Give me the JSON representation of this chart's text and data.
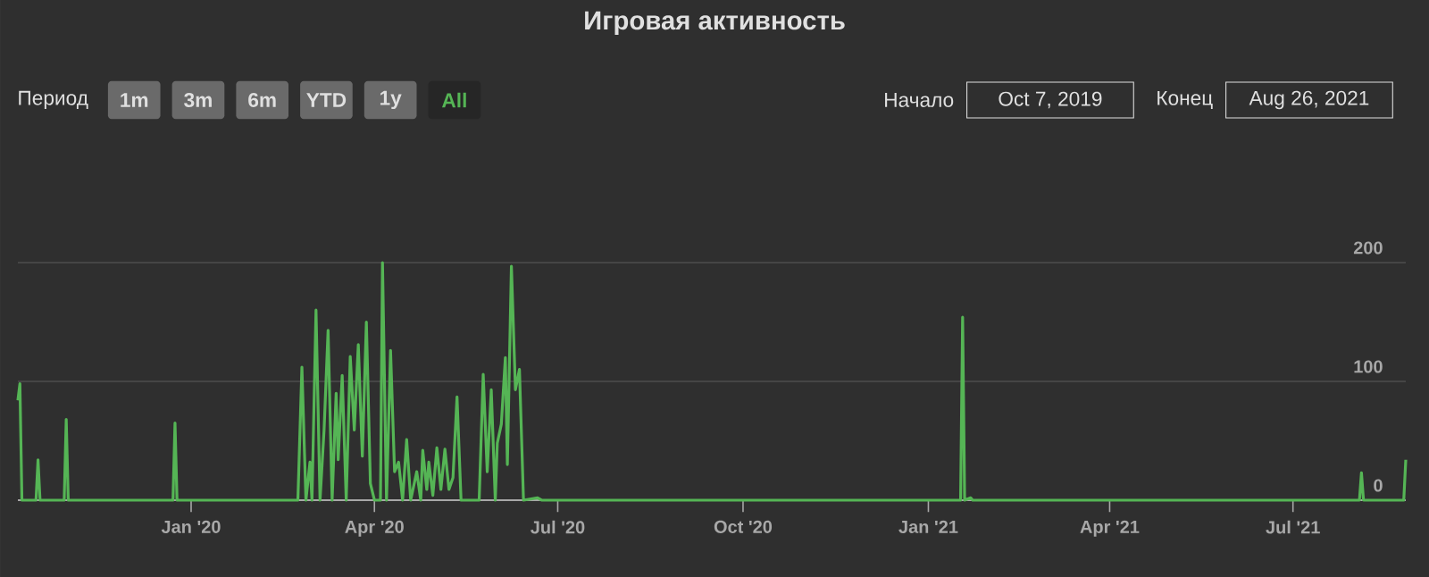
{
  "chart_data": {
    "type": "line",
    "title": "Игровая активность",
    "annotations": [
      "Период",
      "1m",
      "3m",
      "6m",
      "YTD",
      "1y",
      "All",
      "Начало",
      "Oct 7, 2019",
      "Конец",
      "Aug 26, 2021"
    ],
    "x": [
      "2019-10-07",
      "2019-10-08",
      "2019-10-09",
      "2019-10-16",
      "2019-10-17",
      "2019-10-18",
      "2019-10-30",
      "2019-10-31",
      "2019-11-01",
      "2019-12-23",
      "2019-12-24",
      "2019-12-25",
      "2020-02-23",
      "2020-02-25",
      "2020-02-27",
      "2020-02-29",
      "2020-03-01",
      "2020-03-03",
      "2020-03-05",
      "2020-03-07",
      "2020-03-09",
      "2020-03-11",
      "2020-03-13",
      "2020-03-14",
      "2020-03-16",
      "2020-03-18",
      "2020-03-20",
      "2020-03-22",
      "2020-03-24",
      "2020-03-26",
      "2020-03-28",
      "2020-03-30",
      "2020-04-01",
      "2020-04-04",
      "2020-04-05",
      "2020-04-07",
      "2020-04-09",
      "2020-04-11",
      "2020-04-13",
      "2020-04-15",
      "2020-04-17",
      "2020-04-19",
      "2020-04-22",
      "2020-04-24",
      "2020-04-25",
      "2020-04-27",
      "2020-04-28",
      "2020-04-30",
      "2020-05-02",
      "2020-05-04",
      "2020-05-06",
      "2020-05-08",
      "2020-05-10",
      "2020-05-12",
      "2020-05-14",
      "2020-05-23",
      "2020-05-25",
      "2020-05-27",
      "2020-05-29",
      "2020-05-31",
      "2020-06-01",
      "2020-06-03",
      "2020-06-05",
      "2020-06-06",
      "2020-06-08",
      "2020-06-10",
      "2020-06-12",
      "2020-06-14",
      "2020-06-21",
      "2020-06-23",
      "2021-01-17",
      "2021-01-18",
      "2021-01-19",
      "2021-01-22",
      "2021-01-23",
      "2021-08-03",
      "2021-08-04",
      "2021-08-05",
      "2021-08-25",
      "2021-08-26"
    ],
    "series": [
      {
        "color": "#55b555",
        "values": [
          84,
          98,
          0,
          0,
          34,
          0,
          0,
          68,
          0,
          0,
          65,
          0,
          0,
          112,
          0,
          32,
          0,
          160,
          0,
          59,
          143,
          0,
          90,
          34,
          105,
          0,
          121,
          59,
          131,
          37,
          150,
          14,
          0,
          0,
          200,
          0,
          126,
          24,
          32,
          0,
          51,
          0,
          24,
          0,
          42,
          9,
          32,
          4,
          44,
          9,
          43,
          9,
          19,
          87,
          0,
          0,
          106,
          24,
          93,
          0,
          48,
          64,
          120,
          30,
          197,
          93,
          110,
          0,
          2,
          0,
          0,
          154,
          0,
          2,
          0,
          0,
          23,
          0,
          0,
          34
        ]
      }
    ],
    "xlim": [
      "2019-10-07",
      "2021-08-26"
    ],
    "xticks": [
      {
        "value": "2020-01-01",
        "label": "Jan '20"
      },
      {
        "value": "2020-04-01",
        "label": "Apr '20"
      },
      {
        "value": "2020-07-01",
        "label": "Jul '20"
      },
      {
        "value": "2020-10-01",
        "label": "Oct '20"
      },
      {
        "value": "2021-01-01",
        "label": "Jan '21"
      },
      {
        "value": "2021-04-01",
        "label": "Apr '21"
      },
      {
        "value": "2021-07-01",
        "label": "Jul '21"
      }
    ],
    "ylim": [
      0,
      200
    ],
    "yticks": [
      0,
      100,
      200
    ],
    "grid": "y"
  }
}
